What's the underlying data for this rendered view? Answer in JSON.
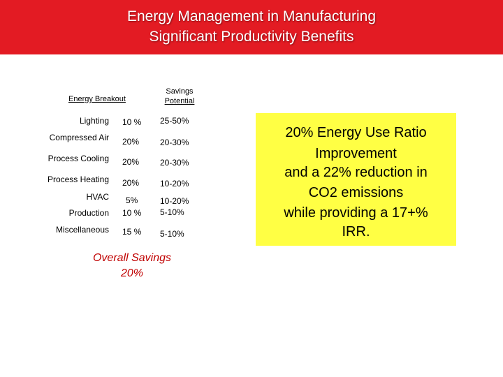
{
  "header": {
    "title_line1": "Energy Management in Manufacturing",
    "title_line2": "Significant Productivity Benefits",
    "banner_color": "#e31b23"
  },
  "table": {
    "col_breakout": "Energy Breakout",
    "col_savings_line1": "Savings",
    "col_savings_line2": "Potential",
    "rows": [
      {
        "category": "Lighting",
        "share": "10 %",
        "potential": "25-50%"
      },
      {
        "category": "Compressed Air",
        "share": "20%",
        "potential": "20-30%"
      },
      {
        "category": "Process Cooling",
        "share": "20%",
        "potential": "20-30%"
      },
      {
        "category": "Process Heating",
        "share": "20%",
        "potential": "10-20%"
      },
      {
        "category": "HVAC",
        "share": "5%",
        "potential": "10-20%"
      },
      {
        "category": "Production",
        "share": "10 %",
        "potential": "5-10%"
      },
      {
        "category": "Miscellaneous",
        "share": "15 %",
        "potential": "5-10%"
      }
    ]
  },
  "overall": {
    "label": "Overall Savings",
    "value": "20%",
    "color": "#c00000"
  },
  "callout": {
    "background": "#ffff44",
    "lines": [
      "20% Energy Use Ratio",
      "Improvement",
      "and a 22% reduction in",
      "CO2 emissions",
      "while providing a 17+%",
      "IRR."
    ]
  }
}
